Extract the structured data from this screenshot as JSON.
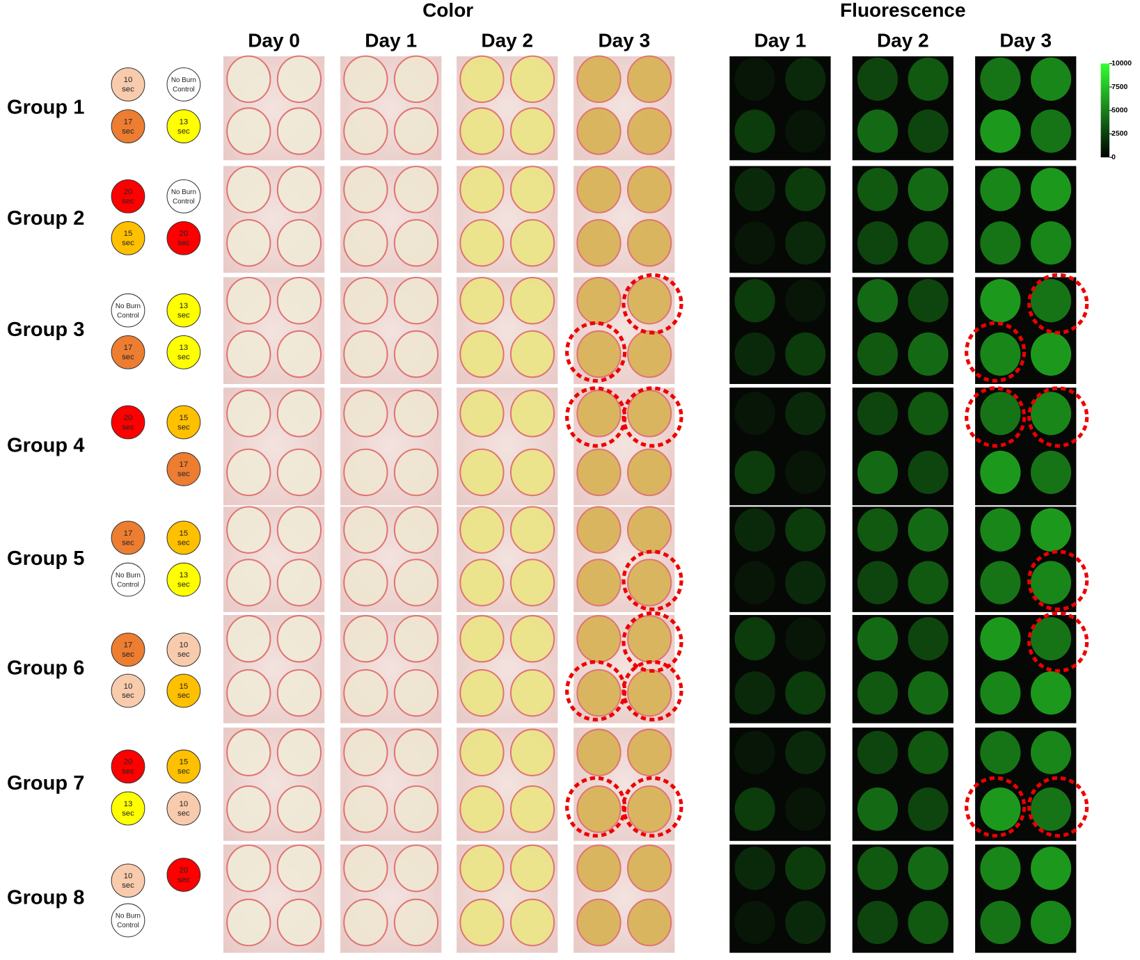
{
  "headers": {
    "color": "Color",
    "fluorescence": "Fluorescence"
  },
  "color_days": [
    "Day 0",
    "Day 1",
    "Day 2",
    "Day 3"
  ],
  "fluorescence_days": [
    "Day 1",
    "Day 2",
    "Day 3"
  ],
  "colorbar_ticks": [
    10000,
    7500,
    5000,
    2500,
    0
  ],
  "groups": [
    {
      "label": "Group 1",
      "burns": [
        {
          "text": [
            "10",
            "sec"
          ],
          "color": "#f8cbad"
        },
        {
          "text": [
            "No Burn",
            "Control"
          ],
          "color": "#ffffff"
        },
        {
          "text": [
            "17",
            "sec"
          ],
          "color": "#ed7d31"
        },
        {
          "text": [
            "13",
            "sec"
          ],
          "color": "#ffff00"
        }
      ]
    },
    {
      "label": "Group 2",
      "burns": [
        {
          "text": [
            "20",
            "sec"
          ],
          "color": "#ff0000"
        },
        {
          "text": [
            "No Burn",
            "Control"
          ],
          "color": "#ffffff"
        },
        {
          "text": [
            "15",
            "sec"
          ],
          "color": "#ffc000"
        },
        {
          "text": [
            "20",
            "sec"
          ],
          "color": "#ff0000"
        }
      ]
    },
    {
      "label": "Group 3",
      "burns": [
        {
          "text": [
            "No Burn",
            "Control"
          ],
          "color": "#ffffff"
        },
        {
          "text": [
            "13",
            "sec"
          ],
          "color": "#ffff00"
        },
        {
          "text": [
            "17",
            "sec"
          ],
          "color": "#ed7d31"
        },
        {
          "text": [
            "13",
            "sec"
          ],
          "color": "#ffff00"
        }
      ]
    },
    {
      "label": "Group 4",
      "burns": [
        {
          "text": [
            "20",
            "sec"
          ],
          "color": "#ff0000"
        },
        {
          "text": [
            "15",
            "sec"
          ],
          "color": "#ffc000"
        },
        {
          "text": [
            "17",
            "sec"
          ],
          "color": "#ed7d31"
        }
      ]
    },
    {
      "label": "Group 5",
      "burns": [
        {
          "text": [
            "17",
            "sec"
          ],
          "color": "#ed7d31"
        },
        {
          "text": [
            "15",
            "sec"
          ],
          "color": "#ffc000"
        },
        {
          "text": [
            "No Burn",
            "Control"
          ],
          "color": "#ffffff"
        },
        {
          "text": [
            "13",
            "sec"
          ],
          "color": "#ffff00"
        }
      ]
    },
    {
      "label": "Group 6",
      "burns": [
        {
          "text": [
            "17",
            "sec"
          ],
          "color": "#ed7d31"
        },
        {
          "text": [
            "10",
            "sec"
          ],
          "color": "#f8cbad"
        },
        {
          "text": [
            "10",
            "sec"
          ],
          "color": "#f8cbad"
        },
        {
          "text": [
            "15",
            "sec"
          ],
          "color": "#ffc000"
        }
      ]
    },
    {
      "label": "Group 7",
      "burns": [
        {
          "text": [
            "20",
            "sec"
          ],
          "color": "#ff0000"
        },
        {
          "text": [
            "15",
            "sec"
          ],
          "color": "#ffc000"
        },
        {
          "text": [
            "13",
            "sec"
          ],
          "color": "#ffff00"
        },
        {
          "text": [
            "10",
            "sec"
          ],
          "color": "#f8cbad"
        }
      ]
    },
    {
      "label": "Group 8",
      "burns": [
        {
          "text": [
            "10",
            "sec"
          ],
          "color": "#f8cbad"
        },
        {
          "text": [
            "20",
            "sec"
          ],
          "color": "#ff0000"
        },
        {
          "text": [
            "No Burn",
            "Control"
          ],
          "color": "#ffffff"
        }
      ]
    }
  ]
}
